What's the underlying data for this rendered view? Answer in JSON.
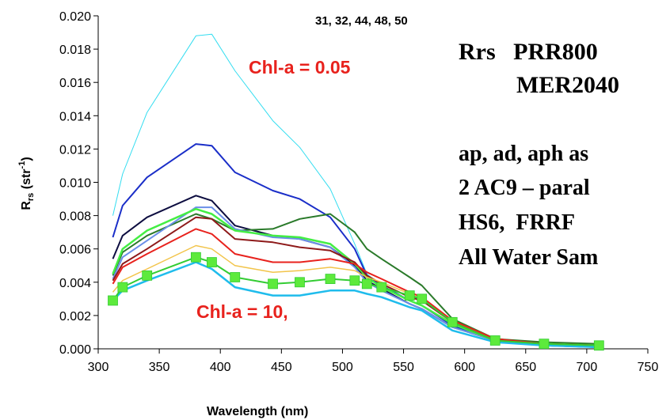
{
  "chart_data": {
    "type": "line",
    "xlabel": "Wavelength (nm)",
    "ylabel_main": "R",
    "ylabel_sub": "rs",
    "ylabel_unit": " (str",
    "ylabel_sup": "-1",
    "ylabel_close": ")",
    "xlim": [
      300,
      750
    ],
    "ylim": [
      0,
      0.02
    ],
    "x_ticks": [
      "300",
      "350",
      "400",
      "450",
      "500",
      "550",
      "600",
      "650",
      "700",
      "750"
    ],
    "y_ticks": [
      "0.000",
      "0.002",
      "0.004",
      "0.006",
      "0.008",
      "0.010",
      "0.012",
      "0.014",
      "0.016",
      "0.018",
      "0.020"
    ],
    "grid": false,
    "top_note": "31, 32, 44, 48, 50",
    "annotations": [
      "Chl-a = 0.05",
      "Chl-a = 10,"
    ],
    "side_text": [
      "Rrs   PRR800",
      "MER2040",
      "ap, ad, aph as",
      "2 AC9 – paral",
      "HS6,  FRRF",
      "All Water Sam"
    ],
    "series": [
      {
        "color": "#33ddf0",
        "marker": "none",
        "width": 1,
        "x": [
          312,
          320,
          340,
          380,
          393,
          412,
          443,
          465,
          490,
          510,
          520,
          532,
          555,
          565,
          590,
          625,
          665,
          710
        ],
        "y": [
          0.008,
          0.0105,
          0.0142,
          0.0188,
          0.0189,
          0.0167,
          0.0137,
          0.0121,
          0.0096,
          0.0063,
          0.0045,
          0.0038,
          0.0029,
          0.0026,
          0.0014,
          0.0005,
          0.0002,
          0.0001
        ]
      },
      {
        "color": "#1a2ec8",
        "marker": "none",
        "width": 2,
        "x": [
          312,
          320,
          340,
          380,
          393,
          412,
          443,
          465,
          490,
          510,
          520,
          532,
          555,
          565,
          590,
          625,
          665,
          710
        ],
        "y": [
          0.0067,
          0.0086,
          0.0103,
          0.0123,
          0.0122,
          0.0106,
          0.0095,
          0.009,
          0.0079,
          0.006,
          0.0044,
          0.0038,
          0.0029,
          0.0026,
          0.0014,
          0.0005,
          0.0002,
          0.0001
        ]
      },
      {
        "color": "#0d0d40",
        "marker": "none",
        "width": 2,
        "x": [
          312,
          320,
          340,
          380,
          393,
          412,
          443,
          465,
          490,
          510,
          520,
          532,
          555,
          565,
          590,
          625,
          665,
          710
        ],
        "y": [
          0.0054,
          0.0068,
          0.0079,
          0.0092,
          0.0089,
          0.0074,
          0.0068,
          0.0066,
          0.0061,
          0.005,
          0.0041,
          0.0036,
          0.0027,
          0.0024,
          0.0013,
          0.0005,
          0.0002,
          0.0001
        ]
      },
      {
        "color": "#2a7a2a",
        "marker": "none",
        "width": 2,
        "x": [
          312,
          320,
          340,
          380,
          393,
          412,
          443,
          465,
          490,
          510,
          520,
          532,
          555,
          565,
          590,
          625,
          665,
          710
        ],
        "y": [
          0.0044,
          0.0058,
          0.0068,
          0.0081,
          0.0078,
          0.0071,
          0.0072,
          0.0078,
          0.0081,
          0.007,
          0.006,
          0.0054,
          0.0043,
          0.0038,
          0.0018,
          0.0006,
          0.0004,
          0.0003
        ]
      },
      {
        "color": "#6a8fe8",
        "marker": "none",
        "width": 2,
        "x": [
          312,
          320,
          340,
          380,
          393,
          412,
          443,
          465,
          490,
          510,
          520,
          532,
          555,
          565,
          590,
          625,
          665,
          710
        ],
        "y": [
          0.0042,
          0.0055,
          0.0065,
          0.0085,
          0.0085,
          0.0072,
          0.0067,
          0.0066,
          0.0061,
          0.0049,
          0.004,
          0.0035,
          0.0027,
          0.0024,
          0.0013,
          0.0005,
          0.0002,
          0.0001
        ]
      },
      {
        "color": "#44ee44",
        "marker": "none",
        "width": 2.5,
        "x": [
          312,
          320,
          340,
          380,
          393,
          412,
          443,
          465,
          490,
          510,
          520,
          532,
          555,
          565,
          590,
          625,
          665,
          710
        ],
        "y": [
          0.0045,
          0.006,
          0.0071,
          0.0084,
          0.0081,
          0.0071,
          0.0068,
          0.0067,
          0.0063,
          0.0051,
          0.0043,
          0.0037,
          0.0029,
          0.0026,
          0.0015,
          0.0005,
          0.0003,
          0.0002
        ]
      },
      {
        "color": "#8e1a1a",
        "marker": "none",
        "width": 2,
        "x": [
          312,
          320,
          340,
          380,
          393,
          412,
          443,
          465,
          490,
          510,
          520,
          532,
          555,
          565,
          590,
          625,
          665,
          710
        ],
        "y": [
          0.0041,
          0.0051,
          0.006,
          0.0079,
          0.0078,
          0.0066,
          0.0064,
          0.0061,
          0.0059,
          0.0052,
          0.0044,
          0.0039,
          0.0031,
          0.0029,
          0.0016,
          0.0005,
          0.0003,
          0.0002
        ]
      },
      {
        "color": "#e8221d",
        "marker": "none",
        "width": 2,
        "x": [
          312,
          320,
          340,
          380,
          393,
          412,
          443,
          465,
          490,
          510,
          520,
          532,
          555,
          565,
          590,
          625,
          665,
          710
        ],
        "y": [
          0.0039,
          0.0049,
          0.0057,
          0.0072,
          0.0069,
          0.0057,
          0.0052,
          0.0052,
          0.0054,
          0.0051,
          0.0046,
          0.0042,
          0.0034,
          0.0031,
          0.0017,
          0.0006,
          0.0003,
          0.0002
        ]
      },
      {
        "color": "#f2c44a",
        "marker": "none",
        "width": 1.5,
        "x": [
          312,
          320,
          340,
          380,
          393,
          412,
          443,
          465,
          490,
          510,
          520,
          532,
          555,
          565,
          590,
          625,
          665,
          710
        ],
        "y": [
          0.0034,
          0.0041,
          0.0048,
          0.0062,
          0.006,
          0.005,
          0.0046,
          0.0047,
          0.0049,
          0.0047,
          0.0043,
          0.004,
          0.0033,
          0.003,
          0.0016,
          0.0005,
          0.0003,
          0.0002
        ]
      },
      {
        "color": "#1fbcec",
        "marker": "none",
        "width": 2.5,
        "x": [
          312,
          320,
          340,
          380,
          393,
          412,
          443,
          465,
          490,
          510,
          520,
          532,
          555,
          565,
          590,
          625,
          665,
          710
        ],
        "y": [
          0.0029,
          0.0035,
          0.0041,
          0.0052,
          0.0048,
          0.0037,
          0.0032,
          0.0032,
          0.0035,
          0.0035,
          0.0033,
          0.0031,
          0.0025,
          0.0023,
          0.0011,
          0.0004,
          0.0002,
          0.0001
        ]
      },
      {
        "color": "#33cc33",
        "marker": "square",
        "marker_fill": "#5dea3c",
        "width": 2,
        "x": [
          312,
          320,
          340,
          380,
          393,
          412,
          443,
          465,
          490,
          510,
          520,
          532,
          555,
          565,
          590,
          625,
          665,
          710
        ],
        "y": [
          0.0029,
          0.0037,
          0.0044,
          0.0055,
          0.0052,
          0.0043,
          0.0039,
          0.004,
          0.0042,
          0.0041,
          0.0039,
          0.0037,
          0.0032,
          0.003,
          0.0016,
          0.0005,
          0.0003,
          0.0002
        ]
      }
    ]
  }
}
